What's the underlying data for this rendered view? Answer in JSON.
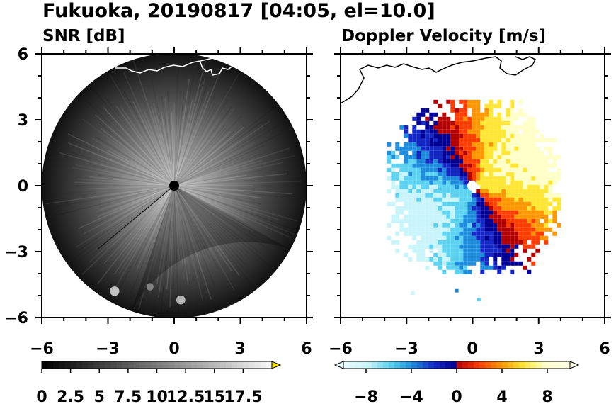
{
  "figure": {
    "title": "Fukuoka, 20190817 [04:05, el=10.0]"
  },
  "colors": {
    "frame": "#000000",
    "snr_dark": "#0a0a0a",
    "snr_mid": "#5c5c5c",
    "snr_light": "#b4b4b4",
    "coast_left": "#ffffff",
    "coast_right": "#000000",
    "radar_dot_left": "#000000",
    "radar_dot_right": "#ffffff"
  },
  "chart_data": [
    {
      "type": "heatmap",
      "title": "SNR [dB]",
      "xlim": [
        -6,
        6
      ],
      "ylim": [
        -6,
        6
      ],
      "xticks": [
        "−6",
        "−3",
        "0",
        "3",
        "6"
      ],
      "yticks": [
        "6",
        "3",
        "0",
        "−3",
        "−6"
      ],
      "max_range": 6,
      "colorbar": {
        "min": 0,
        "max": 20,
        "extend": "max",
        "tick_values": [
          0,
          2.5,
          5,
          7.5,
          10,
          12.5,
          15,
          17.5
        ],
        "tick_labels": [
          "0",
          "2.5",
          "5",
          "7.5",
          "10",
          "12.5",
          "15",
          "17.5"
        ],
        "colors": [
          "#000000",
          "#ffffff"
        ],
        "extend_color": "#ffe600"
      },
      "features": [
        {
          "x": -2.7,
          "y": -4.8,
          "value": 16
        },
        {
          "x": 0.3,
          "y": -5.2,
          "value": 14
        },
        {
          "x": -1.1,
          "y": -4.6,
          "value": 7
        }
      ]
    },
    {
      "type": "heatmap",
      "title": "Doppler Velocity [m/s]",
      "xlim": [
        -6,
        6
      ],
      "ylim": [
        -6,
        6
      ],
      "xticks": [
        "−6",
        "−3",
        "0",
        "3",
        "6"
      ],
      "yticks": [
        "6",
        "3",
        "0",
        "−3",
        "−6"
      ],
      "max_range": 3.9,
      "colorbar": {
        "min": -10,
        "max": 10,
        "extend": "both",
        "tick_values": [
          -8,
          -4,
          0,
          4,
          8
        ],
        "tick_labels": [
          "−8",
          "−4",
          "0",
          "4",
          "8"
        ],
        "colors": [
          "#c8f4fa",
          "#5ad2f0",
          "#1e8cdc",
          "#1428c8",
          "#000096",
          "#b40000",
          "#ff3c00",
          "#ff9600",
          "#ffe632",
          "#ffffc8"
        ]
      },
      "approaching_direction_deg": 210
    }
  ]
}
